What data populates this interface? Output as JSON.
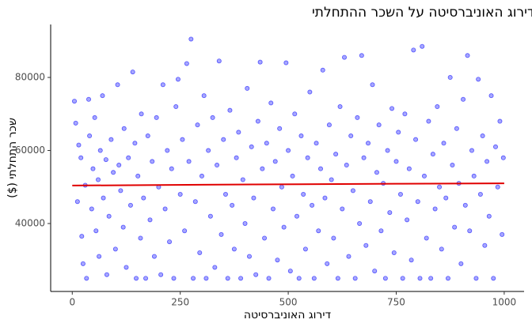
{
  "chart_data": {
    "type": "scatter",
    "title": "השפעת דירוג האוניברסיטה על השכר ההתחלתי",
    "x_label": "דירוג האוניברסיטה",
    "y_label": "שכר התחלתי ($)",
    "xlim": [
      -50,
      1046
    ],
    "ylim": [
      21400,
      94500
    ],
    "xticks": [
      0,
      250,
      500,
      750,
      1000
    ],
    "yticks": [
      40000,
      60000,
      80000
    ],
    "point_color": "#0000ff",
    "x": [
      5,
      8,
      12,
      15,
      20,
      22,
      25,
      30,
      33,
      38,
      40,
      45,
      48,
      52,
      55,
      60,
      62,
      65,
      70,
      72,
      78,
      80,
      85,
      90,
      95,
      100,
      105,
      108,
      112,
      118,
      120,
      125,
      130,
      135,
      140,
      145,
      148,
      152,
      158,
      160,
      165,
      170,
      175,
      180,
      185,
      190,
      195,
      200,
      205,
      210,
      215,
      220,
      225,
      230,
      235,
      240,
      245,
      250,
      255,
      260,
      265,
      270,
      275,
      280,
      285,
      290,
      295,
      300,
      305,
      310,
      315,
      320,
      325,
      330,
      335,
      340,
      345,
      350,
      355,
      360,
      365,
      370,
      375,
      380,
      385,
      390,
      395,
      400,
      405,
      410,
      415,
      420,
      425,
      430,
      435,
      440,
      445,
      450,
      455,
      460,
      465,
      470,
      475,
      480,
      485,
      490,
      495,
      500,
      505,
      510,
      515,
      520,
      525,
      530,
      535,
      540,
      545,
      550,
      555,
      560,
      565,
      570,
      575,
      580,
      585,
      590,
      595,
      600,
      605,
      610,
      615,
      620,
      625,
      630,
      635,
      640,
      645,
      650,
      655,
      660,
      665,
      670,
      675,
      680,
      685,
      690,
      695,
      700,
      705,
      710,
      715,
      720,
      725,
      730,
      735,
      740,
      745,
      750,
      755,
      760,
      765,
      770,
      775,
      780,
      785,
      790,
      795,
      800,
      805,
      810,
      815,
      820,
      825,
      830,
      835,
      840,
      845,
      850,
      855,
      860,
      865,
      870,
      875,
      880,
      885,
      890,
      895,
      900,
      905,
      910,
      915,
      920,
      925,
      930,
      935,
      940,
      945,
      950,
      955,
      960,
      965,
      970,
      975,
      980,
      985,
      990,
      995,
      998
    ],
    "values": [
      73500,
      67500,
      46000,
      61500,
      58000,
      36500,
      29000,
      50500,
      25000,
      74000,
      64000,
      44000,
      55000,
      69000,
      38000,
      52000,
      31000,
      60000,
      75000,
      47000,
      57500,
      26000,
      42000,
      63000,
      54000,
      33000,
      78000,
      56000,
      49000,
      39000,
      66000,
      28000,
      58000,
      45000,
      81500,
      62000,
      25000,
      53000,
      36000,
      70000,
      47000,
      25000,
      64000,
      41000,
      57000,
      31000,
      69000,
      50000,
      26000,
      78000,
      44000,
      60000,
      35000,
      55000,
      25000,
      72000,
      79500,
      48000,
      63000,
      38000,
      83800,
      57000,
      90500,
      25000,
      46000,
      67000,
      32000,
      53000,
      75000,
      25000,
      60000,
      42000,
      69000,
      28000,
      56000,
      84500,
      37000,
      63000,
      48000,
      25000,
      71000,
      45000,
      33000,
      58000,
      65000,
      25000,
      52000,
      40000,
      77000,
      31000,
      61000,
      47000,
      26000,
      68000,
      84200,
      55000,
      36000,
      62000,
      25000,
      73000,
      44000,
      57000,
      30000,
      66000,
      50000,
      39000,
      84000,
      60000,
      27000,
      53000,
      70000,
      42000,
      25000,
      64000,
      48000,
      33000,
      58000,
      76000,
      45000,
      25000,
      62000,
      38000,
      55000,
      82000,
      47000,
      29000,
      67000,
      52000,
      36000,
      59000,
      25000,
      72000,
      44000,
      85500,
      56000,
      31000,
      64000,
      49000,
      25000,
      69000,
      40000,
      86000,
      58000,
      34000,
      62000,
      46000,
      78000,
      27000,
      54000,
      67000,
      38000,
      51000,
      25000,
      60000,
      43000,
      71500,
      32000,
      57000,
      65000,
      48000,
      25000,
      70000,
      41000,
      55000,
      30000,
      87500,
      63000,
      46000,
      25000,
      88500,
      53000,
      36000,
      68000,
      25000,
      59000,
      44000,
      72000,
      50000,
      33000,
      62000,
      47000,
      25000,
      80000,
      56000,
      39000,
      66000,
      51000,
      29000,
      74000,
      45000,
      86000,
      38000,
      60000,
      53000,
      25000,
      79500,
      48000,
      64000,
      34000,
      57000,
      42000,
      75000,
      25000,
      61000,
      50000,
      68000,
      37000,
      58000
    ],
    "trend": {
      "color": "#e00000",
      "x": [
        0,
        420,
        750,
        1000
      ],
      "values": [
        50400,
        50700,
        50900,
        51000
      ]
    }
  }
}
